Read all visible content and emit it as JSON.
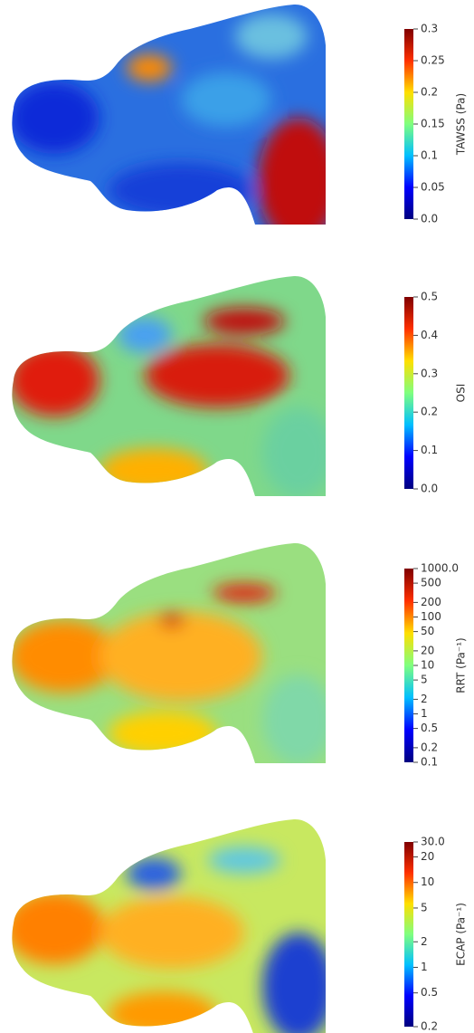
{
  "chart_data": [
    {
      "type": "colorbar",
      "label": "TAWSS (Pa)",
      "ylim": [
        0,
        0.3
      ],
      "log": false,
      "yticks": [
        {
          "value": 0,
          "label": "0.0"
        },
        0.05,
        0.1,
        0.15,
        0.2,
        0.25,
        0.3
      ],
      "colors": [
        "#00007f",
        "#0000ff",
        "#00bfff",
        "#7fff7f",
        "#ffdf00",
        "#ff3000",
        "#7f0000"
      ]
    },
    {
      "type": "colorbar",
      "label": "OSI",
      "ylim": [
        0,
        0.5
      ],
      "log": false,
      "yticks": [
        {
          "value": 0,
          "label": "0.0"
        },
        0.1,
        0.2,
        0.3,
        0.4,
        0.5
      ],
      "colors": [
        "#00007f",
        "#0000ff",
        "#00bfff",
        "#7fff7f",
        "#ffdf00",
        "#ff3000",
        "#7f0000"
      ]
    },
    {
      "type": "colorbar",
      "label": "RRT (Pa⁻¹)",
      "ylim": [
        0.1,
        1000
      ],
      "log": true,
      "yticks": [
        0.1,
        0.2,
        0.5,
        1,
        2,
        5,
        10,
        20,
        50,
        100,
        200,
        500,
        {
          "value": 1000,
          "label": "1000.0"
        }
      ],
      "colors": [
        "#00007f",
        "#0000ff",
        "#00bfff",
        "#7fff7f",
        "#ffdf00",
        "#ff3000",
        "#7f0000"
      ]
    },
    {
      "type": "colorbar",
      "label": "ECAP (Pa⁻¹)",
      "ylim": [
        0.2,
        30
      ],
      "log": true,
      "yticks": [
        0.2,
        0.5,
        1,
        2,
        5,
        10,
        20,
        {
          "value": 30,
          "label": "30.0"
        }
      ],
      "colors": [
        "#00007f",
        "#0000ff",
        "#00bfff",
        "#7fff7f",
        "#ffdf00",
        "#ff3000",
        "#7f0000"
      ]
    }
  ]
}
